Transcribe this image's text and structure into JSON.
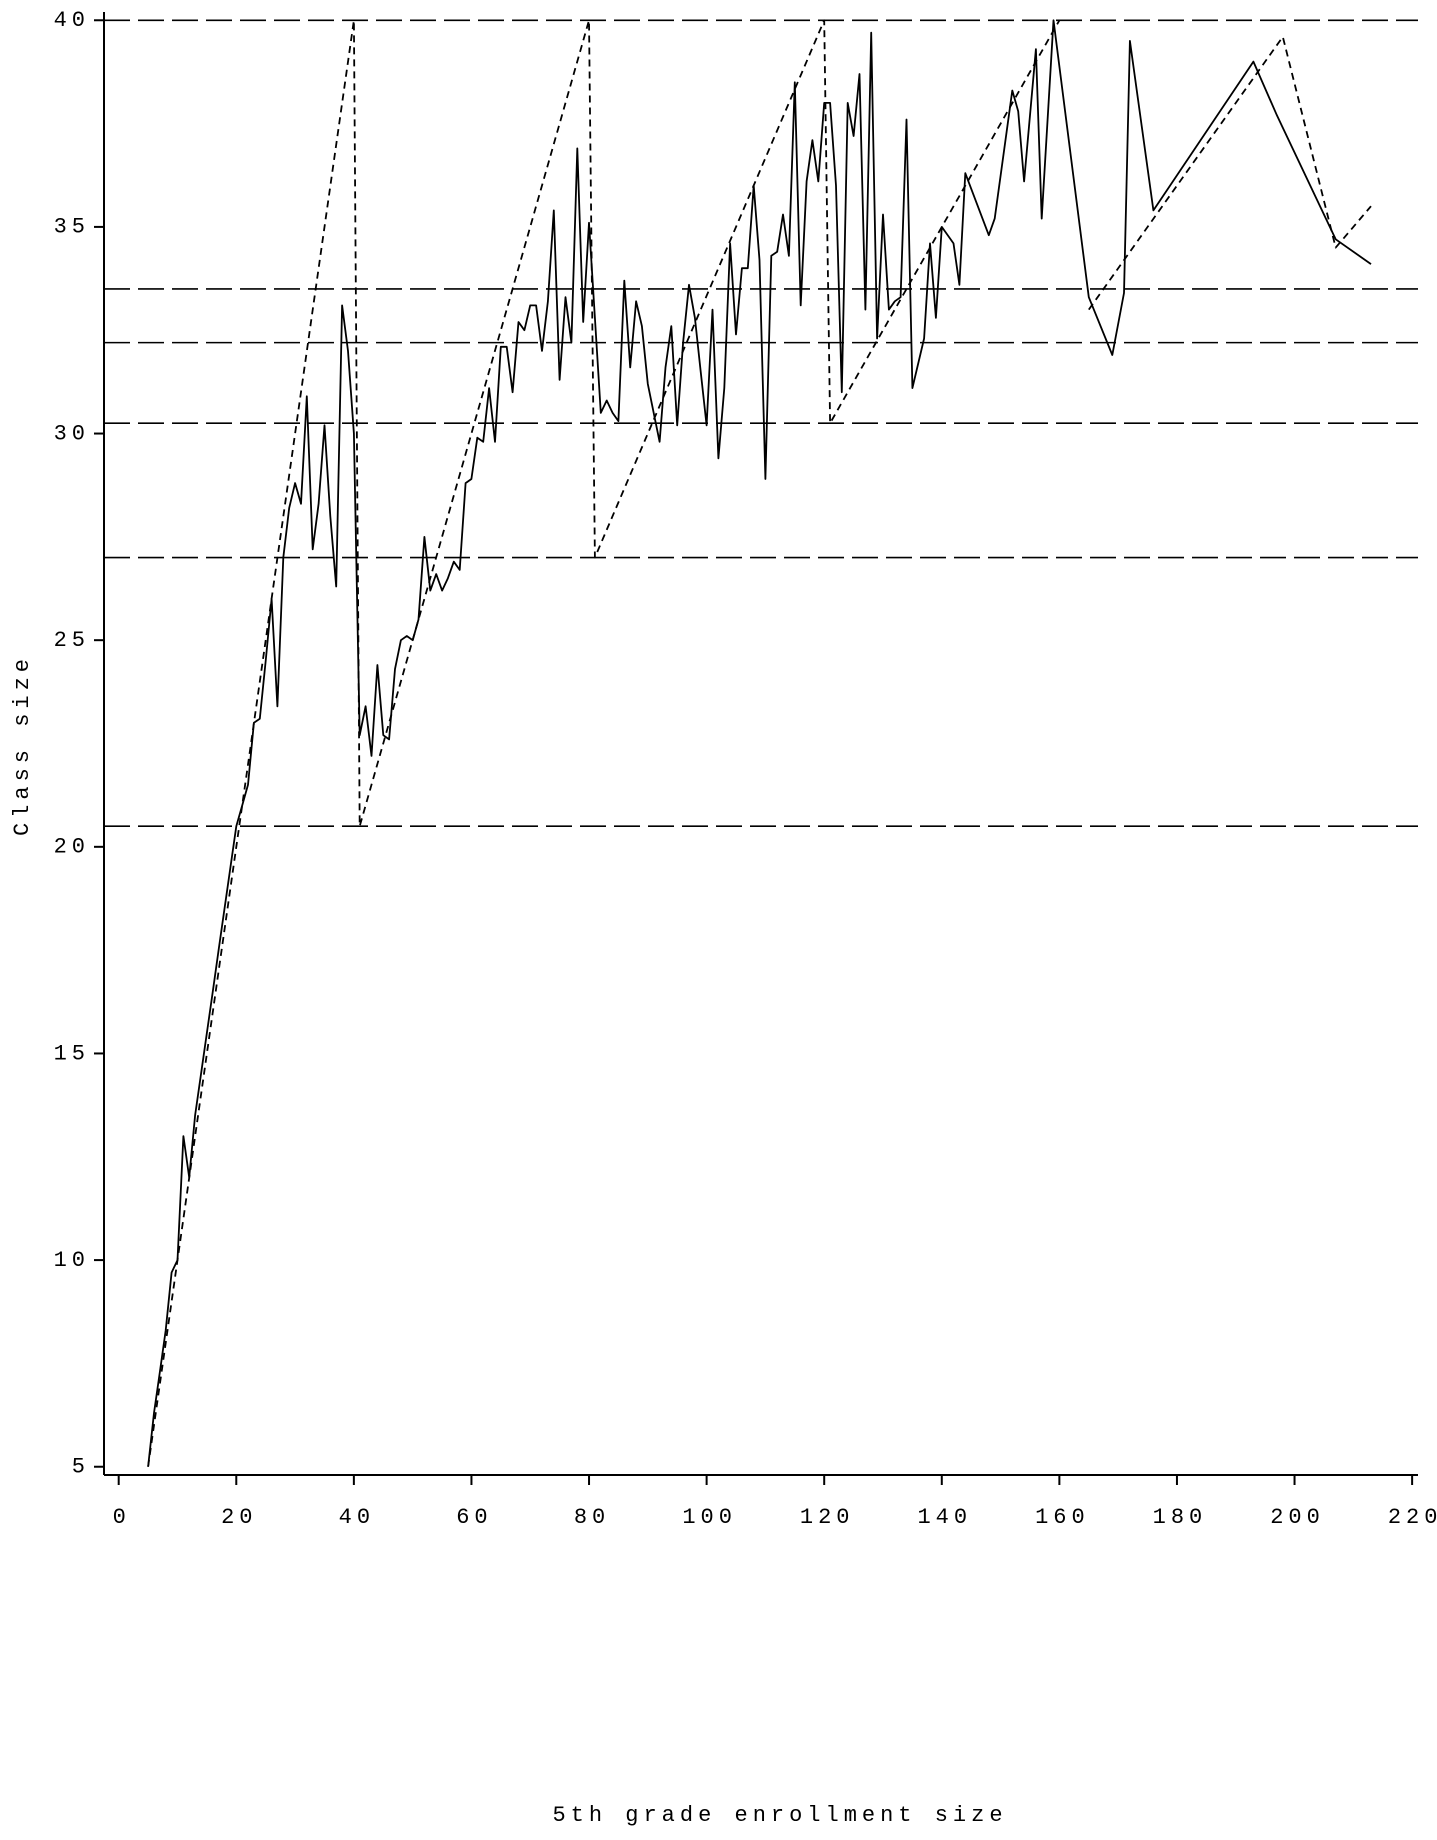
{
  "chart_data": {
    "type": "line",
    "xlabel": "5th grade enrollment size",
    "ylabel": "Class size",
    "xlim": [
      -2.5,
      221
    ],
    "ylim": [
      4.8,
      40.2
    ],
    "xticks": [
      0,
      20,
      40,
      60,
      80,
      100,
      120,
      140,
      160,
      180,
      200,
      220
    ],
    "yticks": [
      5,
      10,
      15,
      20,
      25,
      30,
      35,
      40
    ],
    "reference_lines": [
      40,
      33.5,
      32.2,
      30.25,
      27,
      20.5
    ],
    "series": [
      {
        "color": "#000000",
        "line_style": "solid",
        "x": [
          5,
          6,
          7,
          8,
          9,
          10,
          11,
          12,
          13,
          14,
          15,
          16,
          17,
          18,
          19,
          20,
          21,
          22,
          23,
          24,
          25,
          26,
          27,
          28,
          29,
          30,
          31,
          32,
          33,
          34,
          35,
          36,
          37,
          38,
          39,
          40,
          41,
          42,
          43,
          44,
          45,
          46,
          47,
          48,
          49,
          50,
          51,
          52,
          53,
          54,
          55,
          56,
          57,
          58,
          59,
          60,
          61,
          62,
          63,
          64,
          65,
          66,
          67,
          68,
          69,
          70,
          71,
          72,
          73,
          74,
          75,
          76,
          77,
          78,
          79,
          80,
          81,
          82,
          83,
          84,
          85,
          86,
          87,
          88,
          89,
          90,
          91,
          92,
          93,
          94,
          95,
          96,
          97,
          98,
          99,
          100,
          101,
          102,
          103,
          104,
          105,
          106,
          107,
          108,
          109,
          110,
          111,
          112,
          113,
          114,
          115,
          116,
          117,
          118,
          119,
          120,
          121,
          122,
          123,
          124,
          125,
          126,
          127,
          128,
          129,
          130,
          131,
          132,
          133,
          134,
          135,
          137,
          138,
          139,
          140,
          142,
          143,
          144,
          148,
          149,
          152,
          153,
          154,
          156,
          157,
          159,
          165,
          169,
          171,
          172,
          176,
          193,
          197,
          207,
          213
        ],
        "values": [
          5,
          6.3,
          7.3,
          8.3,
          9.7,
          10,
          13,
          12,
          13.5,
          14.5,
          15.5,
          16.5,
          17.5,
          18.5,
          19.5,
          20.5,
          21,
          21.5,
          23,
          23.1,
          24.5,
          26,
          23.4,
          27,
          28.2,
          28.8,
          28.3,
          30.9,
          27.2,
          28.3,
          30.2,
          28,
          26.3,
          33.1,
          32,
          30,
          22.7,
          23.4,
          22.2,
          24.4,
          22.7,
          22.6,
          24.3,
          25,
          25.1,
          25,
          25.5,
          27.5,
          26.2,
          26.6,
          26.2,
          26.5,
          26.9,
          26.7,
          28.8,
          28.9,
          29.9,
          29.8,
          31.1,
          29.8,
          32.1,
          32.1,
          31,
          32.7,
          32.5,
          33.1,
          33.1,
          32,
          33.2,
          35.4,
          31.3,
          33.3,
          32.2,
          36.9,
          32.7,
          35.1,
          32.8,
          30.5,
          30.8,
          30.5,
          30.3,
          33.7,
          31.6,
          33.2,
          32.6,
          31.2,
          30.5,
          29.8,
          31.6,
          32.6,
          30.2,
          32.2,
          33.6,
          32.8,
          31.5,
          30.2,
          33,
          29.4,
          31.1,
          34.6,
          32.4,
          34,
          34,
          36,
          34.2,
          28.9,
          34.3,
          34.4,
          35.3,
          34.3,
          38.5,
          33.1,
          36.1,
          37.1,
          36.1,
          38,
          38,
          36,
          31,
          38,
          37.2,
          38.7,
          33,
          39.7,
          32.3,
          35.3,
          33,
          33.2,
          33.3,
          37.6,
          31.1,
          32.3,
          34.6,
          32.8,
          35,
          34.6,
          33.6,
          36.3,
          34.8,
          35.2,
          38.3,
          37.8,
          36.1,
          39.3,
          35.2,
          40,
          33.3,
          31.9,
          33.4,
          39.5,
          35.4,
          39,
          37.7,
          34.7,
          34.1
        ]
      },
      {
        "color": "#000000",
        "line_style": "dashed",
        "x": [
          5,
          40,
          41,
          80,
          81,
          120,
          121,
          160,
          162,
          165,
          198,
          207,
          213
        ],
        "values": [
          5,
          40,
          20.5,
          40,
          27,
          40,
          30.25,
          40,
          null,
          33,
          39.6,
          34.5,
          35.5
        ]
      }
    ]
  }
}
